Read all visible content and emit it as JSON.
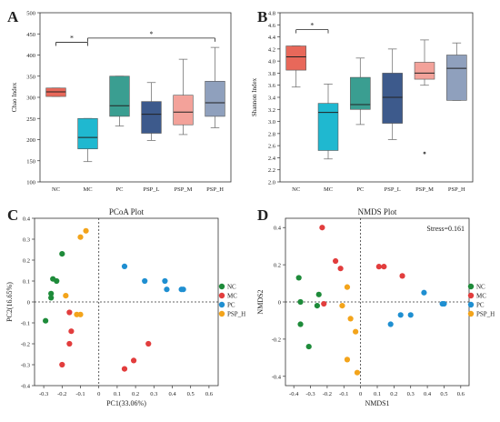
{
  "chart_data": [
    {
      "panel": "A",
      "type": "box",
      "ylabel": "Chao Index",
      "ylim": [
        100,
        500
      ],
      "yticks": [
        100,
        150,
        200,
        250,
        300,
        350,
        400,
        450,
        500
      ],
      "categories": [
        "NC",
        "MC",
        "PC",
        "PSP_L",
        "PSP_M",
        "PSP_H"
      ],
      "boxes": [
        {
          "group": "NC",
          "min": 302,
          "q1": 302,
          "median": 313,
          "q3": 322,
          "max": 322,
          "color": "#e8685a"
        },
        {
          "group": "MC",
          "min": 148,
          "q1": 178,
          "median": 205,
          "q3": 250,
          "max": 250,
          "color": "#1fb8d0"
        },
        {
          "group": "PC",
          "min": 232,
          "q1": 255,
          "median": 280,
          "q3": 350,
          "max": 350,
          "color": "#3a9e91"
        },
        {
          "group": "PSP_L",
          "min": 198,
          "q1": 215,
          "median": 260,
          "q3": 290,
          "max": 335,
          "color": "#3d5a8c"
        },
        {
          "group": "PSP_M",
          "min": 212,
          "q1": 235,
          "median": 265,
          "q3": 305,
          "max": 390,
          "color": "#f3a29a"
        },
        {
          "group": "PSP_H",
          "min": 228,
          "q1": 255,
          "median": 287,
          "q3": 338,
          "max": 418,
          "color": "#8fa0bd"
        }
      ],
      "significance": [
        {
          "from": "NC",
          "to": "MC",
          "label": "*",
          "y": 430
        },
        {
          "from": "MC",
          "to": "PSP_H",
          "label": "*",
          "y": 440
        }
      ]
    },
    {
      "panel": "B",
      "type": "box",
      "ylabel": "Shannon Index",
      "ylim": [
        2.0,
        4.8
      ],
      "yticks": [
        2.0,
        2.2,
        2.4,
        2.6,
        2.8,
        3.0,
        3.2,
        3.4,
        3.6,
        3.8,
        4.0,
        4.2,
        4.4,
        4.6,
        4.8
      ],
      "categories": [
        "NC",
        "MC",
        "PC",
        "PSP_L",
        "PSP_M",
        "PSP_H"
      ],
      "boxes": [
        {
          "group": "NC",
          "min": 3.57,
          "q1": 3.85,
          "median": 4.07,
          "q3": 4.25,
          "max": 4.25,
          "color": "#e8685a"
        },
        {
          "group": "MC",
          "min": 2.38,
          "q1": 2.52,
          "median": 3.15,
          "q3": 3.3,
          "max": 3.62,
          "color": "#1fb8d0"
        },
        {
          "group": "PC",
          "min": 2.95,
          "q1": 3.2,
          "median": 3.28,
          "q3": 3.73,
          "max": 4.05,
          "color": "#3a9e91"
        },
        {
          "group": "PSP_L",
          "min": 2.7,
          "q1": 2.97,
          "median": 3.4,
          "q3": 3.8,
          "max": 4.2,
          "color": "#3d5a8c"
        },
        {
          "group": "PSP_M",
          "min": 3.6,
          "q1": 3.7,
          "median": 3.8,
          "q3": 3.98,
          "max": 4.35,
          "color": "#f3a29a",
          "outliers": [
            2.48
          ]
        },
        {
          "group": "PSP_H",
          "min": 3.35,
          "q1": 3.35,
          "median": 3.88,
          "q3": 4.1,
          "max": 4.3,
          "color": "#8fa0bd"
        }
      ],
      "significance": [
        {
          "from": "NC",
          "to": "MC",
          "label": "*",
          "y": 4.52
        }
      ]
    },
    {
      "panel": "C",
      "type": "scatter",
      "title": "PCoA Plot",
      "xlabel": "PC1(33.06%)",
      "ylabel": "PC2(16.65%)",
      "xlim": [
        -0.35,
        0.65
      ],
      "ylim": [
        -0.4,
        0.4
      ],
      "xticks": [
        -0.3,
        -0.2,
        -0.1,
        0,
        0.1,
        0.2,
        0.3,
        0.4,
        0.5,
        0.6
      ],
      "yticks": [
        -0.4,
        -0.3,
        -0.2,
        -0.1,
        0,
        0.1,
        0.2,
        0.3,
        0.4
      ],
      "reference_lines": {
        "x": 0,
        "y": 0
      },
      "series": [
        {
          "name": "NC",
          "color": "#1e8b3a",
          "points": [
            [
              -0.2,
              0.23
            ],
            [
              -0.25,
              0.11
            ],
            [
              -0.23,
              0.1
            ],
            [
              -0.26,
              0.04
            ],
            [
              -0.26,
              0.02
            ],
            [
              -0.29,
              -0.09
            ]
          ]
        },
        {
          "name": "MC",
          "color": "#e23d3d",
          "points": [
            [
              -0.16,
              -0.05
            ],
            [
              -0.15,
              -0.14
            ],
            [
              -0.16,
              -0.2
            ],
            [
              -0.2,
              -0.3
            ],
            [
              0.14,
              -0.32
            ],
            [
              0.19,
              -0.28
            ],
            [
              0.27,
              -0.2
            ]
          ]
        },
        {
          "name": "PC",
          "color": "#1f8fd1",
          "points": [
            [
              0.14,
              0.17
            ],
            [
              0.25,
              0.1
            ],
            [
              0.36,
              0.1
            ],
            [
              0.37,
              0.06
            ],
            [
              0.45,
              0.06
            ],
            [
              0.46,
              0.06
            ]
          ]
        },
        {
          "name": "PSP_H",
          "color": "#f3a41b",
          "points": [
            [
              -0.07,
              0.34
            ],
            [
              -0.1,
              0.31
            ],
            [
              -0.18,
              0.03
            ],
            [
              -0.1,
              -0.06
            ],
            [
              -0.12,
              -0.06
            ]
          ]
        }
      ]
    },
    {
      "panel": "D",
      "type": "scatter",
      "title": "NMDS Plot",
      "annotation": "Stress=0.161",
      "xlabel": "NMDS1",
      "ylabel": "NMDS2",
      "xlim": [
        -0.45,
        0.65
      ],
      "ylim": [
        -0.45,
        0.45
      ],
      "xticks": [
        -0.4,
        -0.3,
        -0.2,
        -0.1,
        0,
        0.1,
        0.2,
        0.3,
        0.4,
        0.5,
        0.6
      ],
      "yticks": [
        -0.4,
        -0.2,
        0,
        0.2,
        0.4
      ],
      "reference_lines": {
        "x": 0,
        "y": 0
      },
      "series": [
        {
          "name": "NC",
          "color": "#1e8b3a",
          "points": [
            [
              -0.37,
              0.13
            ],
            [
              -0.25,
              0.04
            ],
            [
              -0.36,
              0.0
            ],
            [
              -0.26,
              -0.02
            ],
            [
              -0.36,
              -0.12
            ],
            [
              -0.31,
              -0.24
            ]
          ]
        },
        {
          "name": "MC",
          "color": "#e23d3d",
          "points": [
            [
              -0.23,
              0.4
            ],
            [
              -0.15,
              0.22
            ],
            [
              -0.12,
              0.18
            ],
            [
              0.11,
              0.19
            ],
            [
              0.14,
              0.19
            ],
            [
              0.25,
              0.14
            ],
            [
              -0.22,
              -0.01
            ]
          ]
        },
        {
          "name": "PC",
          "color": "#1f8fd1",
          "points": [
            [
              0.38,
              0.05
            ],
            [
              0.3,
              -0.07
            ],
            [
              0.24,
              -0.07
            ],
            [
              0.18,
              -0.12
            ],
            [
              0.49,
              -0.01
            ],
            [
              0.5,
              -0.01
            ]
          ]
        },
        {
          "name": "PSP_H",
          "color": "#f3a41b",
          "points": [
            [
              -0.08,
              0.08
            ],
            [
              -0.11,
              -0.02
            ],
            [
              -0.06,
              -0.09
            ],
            [
              -0.03,
              -0.16
            ],
            [
              -0.08,
              -0.31
            ],
            [
              -0.02,
              -0.38
            ]
          ]
        }
      ]
    }
  ],
  "labels": {
    "panel_a": "A",
    "panel_b": "B",
    "panel_c": "C",
    "panel_d": "D"
  }
}
